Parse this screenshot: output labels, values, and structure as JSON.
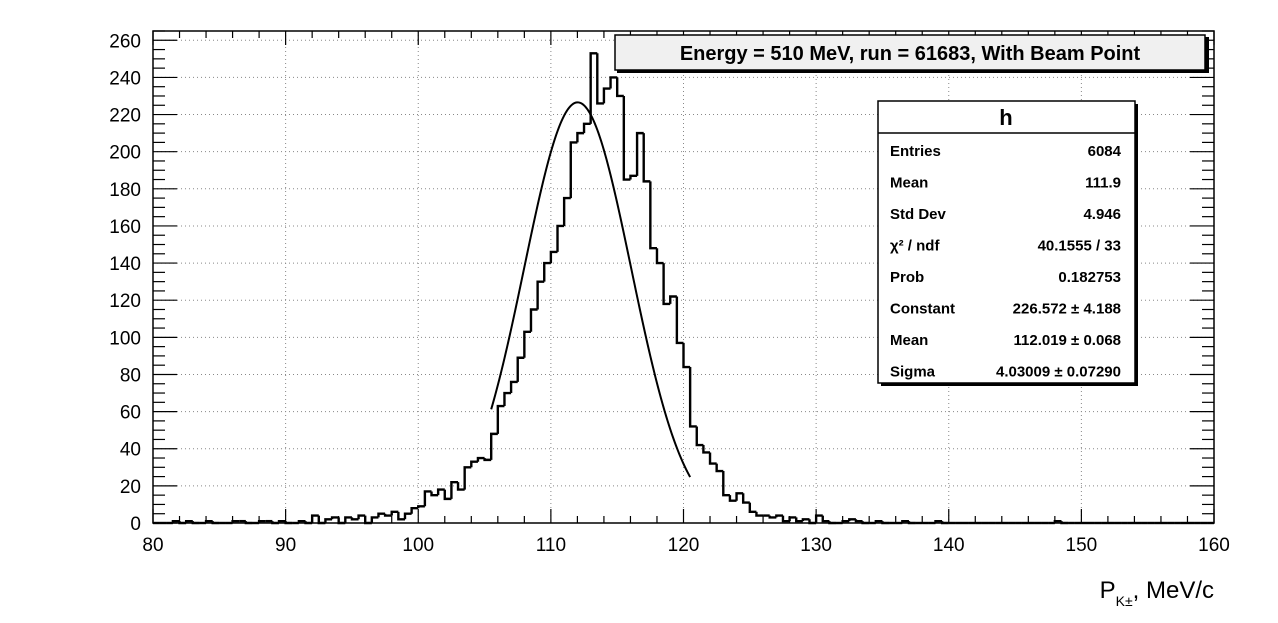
{
  "chart_data": {
    "type": "histogram",
    "title": "Energy = 510 MeV, run = 61683, With Beam Point",
    "xlabel": "P_{K±}, MeV/c",
    "xlabel_main": "P",
    "xlabel_sub": "K±",
    "xlabel_rest": ", MeV/c",
    "ylabel": "",
    "xlim": [
      80,
      160
    ],
    "ylim": [
      0,
      265
    ],
    "xticks": [
      80,
      90,
      100,
      110,
      120,
      130,
      140,
      150,
      160
    ],
    "yticks": [
      0,
      20,
      40,
      60,
      80,
      100,
      120,
      140,
      160,
      180,
      200,
      220,
      240,
      260
    ],
    "grid": true,
    "bin_width": 0.5,
    "bins": [
      {
        "x": 80.0,
        "y": 0
      },
      {
        "x": 80.5,
        "y": 0
      },
      {
        "x": 81.0,
        "y": 0
      },
      {
        "x": 81.5,
        "y": 1
      },
      {
        "x": 82.0,
        "y": 0
      },
      {
        "x": 82.5,
        "y": 1
      },
      {
        "x": 83.0,
        "y": 0
      },
      {
        "x": 83.5,
        "y": 0
      },
      {
        "x": 84.0,
        "y": 1
      },
      {
        "x": 84.5,
        "y": 0
      },
      {
        "x": 85.0,
        "y": 0
      },
      {
        "x": 85.5,
        "y": 0
      },
      {
        "x": 86.0,
        "y": 1
      },
      {
        "x": 86.5,
        "y": 1
      },
      {
        "x": 87.0,
        "y": 0
      },
      {
        "x": 87.5,
        "y": 0
      },
      {
        "x": 88.0,
        "y": 1
      },
      {
        "x": 88.5,
        "y": 1
      },
      {
        "x": 89.0,
        "y": 0
      },
      {
        "x": 89.5,
        "y": 1
      },
      {
        "x": 90.0,
        "y": 0
      },
      {
        "x": 90.5,
        "y": 0
      },
      {
        "x": 91.0,
        "y": 1
      },
      {
        "x": 91.5,
        "y": 0
      },
      {
        "x": 92.0,
        "y": 4
      },
      {
        "x": 92.5,
        "y": 0
      },
      {
        "x": 93.0,
        "y": 2
      },
      {
        "x": 93.5,
        "y": 3
      },
      {
        "x": 94.0,
        "y": 0
      },
      {
        "x": 94.5,
        "y": 3
      },
      {
        "x": 95.0,
        "y": 2
      },
      {
        "x": 95.5,
        "y": 4
      },
      {
        "x": 96.0,
        "y": 0
      },
      {
        "x": 96.5,
        "y": 3
      },
      {
        "x": 97.0,
        "y": 5
      },
      {
        "x": 97.5,
        "y": 4
      },
      {
        "x": 98.0,
        "y": 6
      },
      {
        "x": 98.5,
        "y": 2
      },
      {
        "x": 99.0,
        "y": 5
      },
      {
        "x": 99.5,
        "y": 8
      },
      {
        "x": 100.0,
        "y": 9
      },
      {
        "x": 100.5,
        "y": 17
      },
      {
        "x": 101.0,
        "y": 15
      },
      {
        "x": 101.5,
        "y": 18
      },
      {
        "x": 102.0,
        "y": 13
      },
      {
        "x": 102.5,
        "y": 22
      },
      {
        "x": 103.0,
        "y": 18
      },
      {
        "x": 103.5,
        "y": 30
      },
      {
        "x": 104.0,
        "y": 33
      },
      {
        "x": 104.5,
        "y": 35
      },
      {
        "x": 105.0,
        "y": 34
      },
      {
        "x": 105.5,
        "y": 48
      },
      {
        "x": 106.0,
        "y": 63
      },
      {
        "x": 106.5,
        "y": 70
      },
      {
        "x": 107.0,
        "y": 76
      },
      {
        "x": 107.5,
        "y": 89
      },
      {
        "x": 108.0,
        "y": 103
      },
      {
        "x": 108.5,
        "y": 115
      },
      {
        "x": 109.0,
        "y": 130
      },
      {
        "x": 109.5,
        "y": 140
      },
      {
        "x": 110.0,
        "y": 146
      },
      {
        "x": 110.5,
        "y": 160
      },
      {
        "x": 111.0,
        "y": 175
      },
      {
        "x": 111.5,
        "y": 205
      },
      {
        "x": 112.0,
        "y": 210
      },
      {
        "x": 112.5,
        "y": 215
      },
      {
        "x": 113.0,
        "y": 253
      },
      {
        "x": 113.5,
        "y": 226
      },
      {
        "x": 114.0,
        "y": 234
      },
      {
        "x": 114.5,
        "y": 240
      },
      {
        "x": 115.0,
        "y": 230
      },
      {
        "x": 115.5,
        "y": 185
      },
      {
        "x": 116.0,
        "y": 187
      },
      {
        "x": 116.5,
        "y": 210
      },
      {
        "x": 117.0,
        "y": 184
      },
      {
        "x": 117.5,
        "y": 148
      },
      {
        "x": 118.0,
        "y": 140
      },
      {
        "x": 118.5,
        "y": 118
      },
      {
        "x": 119.0,
        "y": 122
      },
      {
        "x": 119.5,
        "y": 97
      },
      {
        "x": 120.0,
        "y": 84
      },
      {
        "x": 120.5,
        "y": 52
      },
      {
        "x": 121.0,
        "y": 42
      },
      {
        "x": 121.5,
        "y": 38
      },
      {
        "x": 122.0,
        "y": 32
      },
      {
        "x": 122.5,
        "y": 28
      },
      {
        "x": 123.0,
        "y": 15
      },
      {
        "x": 123.5,
        "y": 12
      },
      {
        "x": 124.0,
        "y": 16
      },
      {
        "x": 124.5,
        "y": 11
      },
      {
        "x": 125.0,
        "y": 6
      },
      {
        "x": 125.5,
        "y": 4
      },
      {
        "x": 126.0,
        "y": 4
      },
      {
        "x": 126.5,
        "y": 3
      },
      {
        "x": 127.0,
        "y": 4
      },
      {
        "x": 127.5,
        "y": 1
      },
      {
        "x": 128.0,
        "y": 3
      },
      {
        "x": 128.5,
        "y": 1
      },
      {
        "x": 129.0,
        "y": 2
      },
      {
        "x": 129.5,
        "y": 0
      },
      {
        "x": 130.0,
        "y": 4
      },
      {
        "x": 130.5,
        "y": 1
      },
      {
        "x": 131.0,
        "y": 0
      },
      {
        "x": 131.5,
        "y": 0
      },
      {
        "x": 132.0,
        "y": 1
      },
      {
        "x": 132.5,
        "y": 2
      },
      {
        "x": 133.0,
        "y": 1
      },
      {
        "x": 133.5,
        "y": 0
      },
      {
        "x": 134.0,
        "y": 0
      },
      {
        "x": 134.5,
        "y": 1
      },
      {
        "x": 135.0,
        "y": 0
      },
      {
        "x": 135.5,
        "y": 0
      },
      {
        "x": 136.0,
        "y": 0
      },
      {
        "x": 136.5,
        "y": 1
      },
      {
        "x": 137.0,
        "y": 0
      },
      {
        "x": 137.5,
        "y": 0
      },
      {
        "x": 138.0,
        "y": 0
      },
      {
        "x": 138.5,
        "y": 0
      },
      {
        "x": 139.0,
        "y": 1
      },
      {
        "x": 139.5,
        "y": 0
      },
      {
        "x": 140.0,
        "y": 0
      },
      {
        "x": 140.5,
        "y": 0
      },
      {
        "x": 141.0,
        "y": 0
      },
      {
        "x": 141.5,
        "y": 0
      },
      {
        "x": 142.0,
        "y": 0
      },
      {
        "x": 142.5,
        "y": 0
      },
      {
        "x": 143.0,
        "y": 0
      },
      {
        "x": 143.5,
        "y": 0
      },
      {
        "x": 144.0,
        "y": 0
      },
      {
        "x": 144.5,
        "y": 0
      },
      {
        "x": 145.0,
        "y": 0
      },
      {
        "x": 145.5,
        "y": 0
      },
      {
        "x": 146.0,
        "y": 0
      },
      {
        "x": 146.5,
        "y": 0
      },
      {
        "x": 147.0,
        "y": 0
      },
      {
        "x": 147.5,
        "y": 0
      },
      {
        "x": 148.0,
        "y": 1
      },
      {
        "x": 148.5,
        "y": 0
      },
      {
        "x": 149.0,
        "y": 0
      },
      {
        "x": 149.5,
        "y": 0
      },
      {
        "x": 150.0,
        "y": 0
      },
      {
        "x": 150.5,
        "y": 0
      },
      {
        "x": 151.0,
        "y": 0
      },
      {
        "x": 151.5,
        "y": 0
      },
      {
        "x": 152.0,
        "y": 0
      },
      {
        "x": 152.5,
        "y": 0
      },
      {
        "x": 153.0,
        "y": 0
      },
      {
        "x": 153.5,
        "y": 0
      },
      {
        "x": 154.0,
        "y": 0
      },
      {
        "x": 154.5,
        "y": 0
      },
      {
        "x": 155.0,
        "y": 0
      },
      {
        "x": 155.5,
        "y": 0
      },
      {
        "x": 156.0,
        "y": 0
      },
      {
        "x": 156.5,
        "y": 0
      },
      {
        "x": 157.0,
        "y": 0
      },
      {
        "x": 157.5,
        "y": 0
      },
      {
        "x": 158.0,
        "y": 0
      },
      {
        "x": 158.5,
        "y": 0
      },
      {
        "x": 159.0,
        "y": 0
      },
      {
        "x": 159.5,
        "y": 0
      }
    ],
    "fit": {
      "function": "gaus",
      "constant": 226.572,
      "mean": 112.019,
      "sigma": 4.03009,
      "range": [
        105.5,
        120.5
      ]
    },
    "stats_box": {
      "title": "h",
      "rows": [
        {
          "label": "Entries",
          "value": "6084"
        },
        {
          "label": "Mean",
          "value": "111.9"
        },
        {
          "label": "Std Dev",
          "value": "4.946"
        },
        {
          "label": "χ² / ndf",
          "value": "40.1555 / 33"
        },
        {
          "label": "Prob",
          "value": "0.182753"
        },
        {
          "label": "Constant",
          "value": "226.572 ± 4.188"
        },
        {
          "label": "Mean",
          "value": "112.019 ± 0.068"
        },
        {
          "label": "Sigma",
          "value": "4.03009 ± 0.07290"
        }
      ]
    }
  }
}
